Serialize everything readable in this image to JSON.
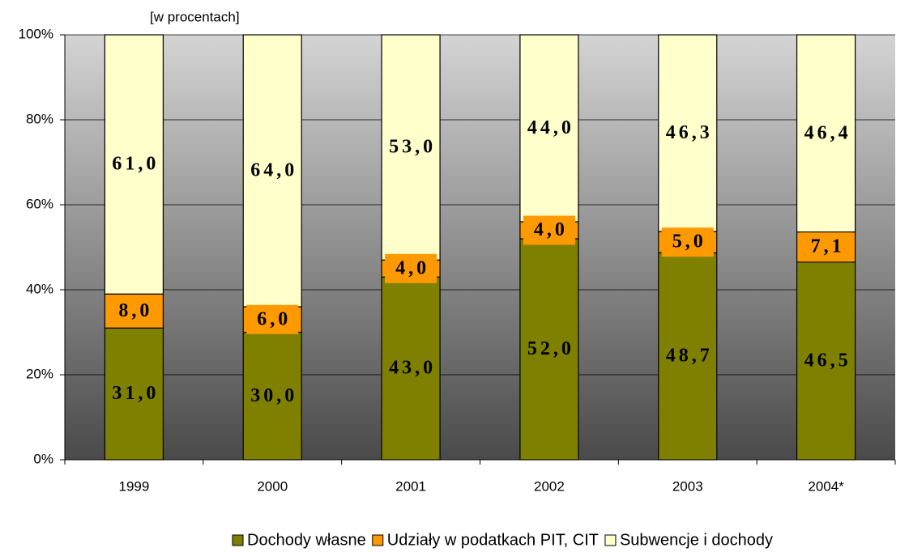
{
  "chart_data": {
    "type": "stacked_bar",
    "subtitle": "[w procentach]",
    "categories": [
      "1999",
      "2000",
      "2001",
      "2002",
      "2003",
      "2004*"
    ],
    "series": [
      {
        "name": "Dochody własne",
        "color": "#808000",
        "values": [
          31,
          30,
          43,
          52,
          48.7,
          46.5
        ],
        "value_labels": [
          "31,0",
          "30,0",
          "43,0",
          "52,0",
          "48,7",
          "46,5"
        ]
      },
      {
        "name": "Udziały w podatkach PIT, CIT",
        "color": "#ff9900",
        "values": [
          8,
          6,
          4,
          4,
          5,
          7.1
        ],
        "value_labels": [
          "8,0",
          "6,0",
          "4,0",
          "4,0",
          "5,0",
          "7,1"
        ]
      },
      {
        "name": "Subwencje i dochody",
        "color": "#ffffcc",
        "values": [
          61,
          64,
          53,
          44,
          46.3,
          46.4
        ],
        "value_labels": [
          "61,0",
          "64,0",
          "53,0",
          "44,0",
          "46,3",
          "46,4"
        ]
      }
    ],
    "ylim": [
      0,
      100
    ],
    "yticks": [
      {
        "value": 0,
        "label": "0%"
      },
      {
        "value": 20,
        "label": "20%"
      },
      {
        "value": 40,
        "label": "40%"
      },
      {
        "value": 60,
        "label": "60%"
      },
      {
        "value": 80,
        "label": "80%"
      },
      {
        "value": 100,
        "label": "100%"
      }
    ],
    "grid": true
  }
}
